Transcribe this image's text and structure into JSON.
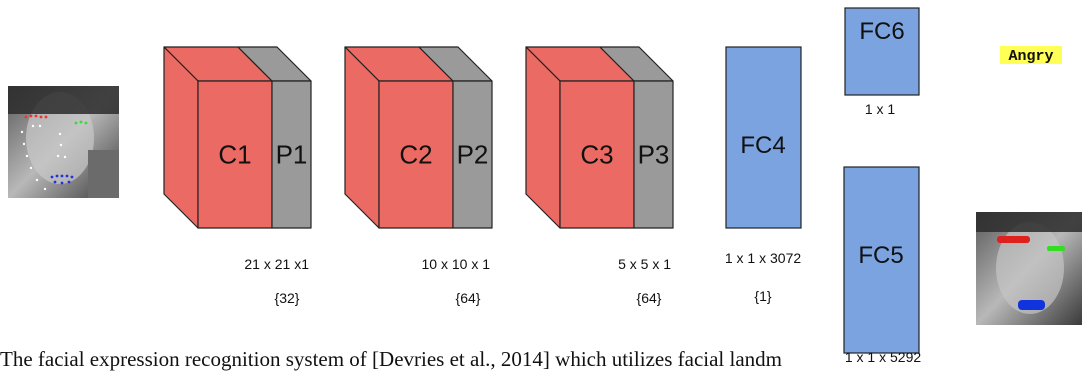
{
  "layers": {
    "conv": [
      {
        "conv_label": "C1",
        "pool_label": "P1",
        "dims": "21 x 21 x1",
        "channels": "{32}"
      },
      {
        "conv_label": "C2",
        "pool_label": "P2",
        "dims": "10 x 10 x 1",
        "channels": "{64}"
      },
      {
        "conv_label": "C3",
        "pool_label": "P3",
        "dims": "5 x 5 x 1",
        "channels": "{64}"
      }
    ],
    "fc4": {
      "label": "FC4",
      "dims": "1 x 1 x 3072",
      "channels": "{1}"
    },
    "fc5": {
      "label": "FC5",
      "dims": "1 x 1 x 5292"
    },
    "fc6": {
      "label": "FC6",
      "dims": "1 x 1"
    }
  },
  "output": {
    "emotion": "Angry"
  },
  "caption": {
    "text": "The facial expression recognition system of [Devries et al., 2014] which utilizes facial landm"
  },
  "colors": {
    "conv": "#eb6a63",
    "pool": "#9a9a9a",
    "fc": "#7aa3e0",
    "highlight": "#ffff55",
    "brow_left": "#e0201c",
    "brow_right": "#33dd22",
    "mouth": "#1133dd"
  }
}
